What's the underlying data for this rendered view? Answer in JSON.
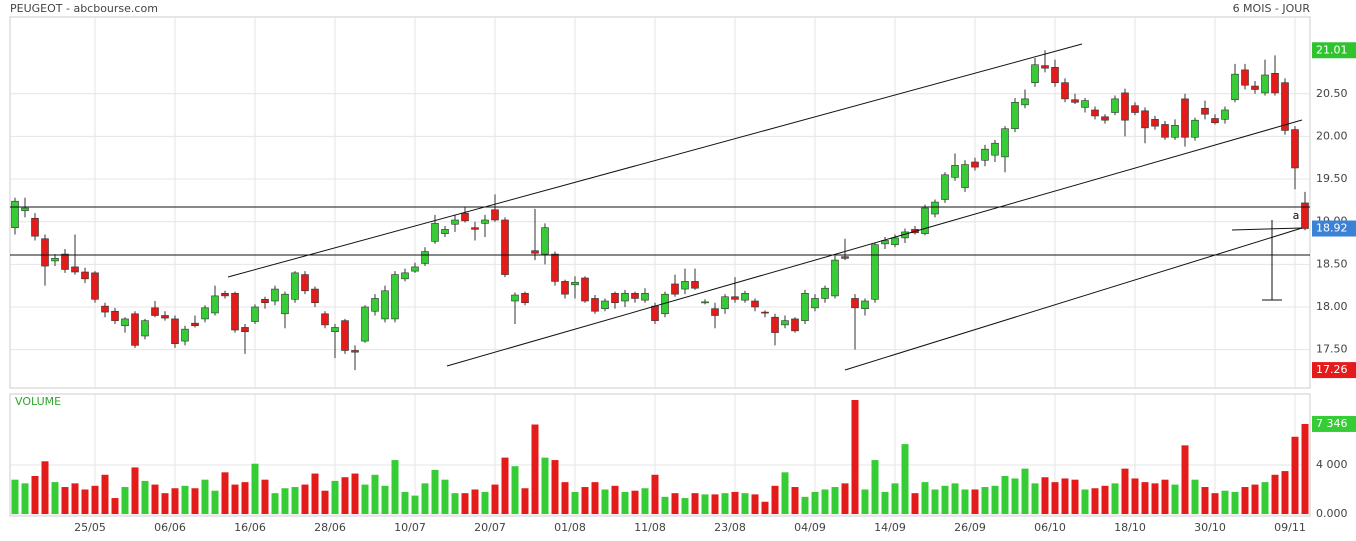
{
  "chart_data": {
    "type": "candlestick",
    "title": "PEUGEOT - abcbourse.com",
    "period": "6 MOIS - JOUR",
    "annotation": "a",
    "up_color": "#35cc35",
    "down_color": "#e31b1b",
    "ylim": [
      17.05,
      21.4
    ],
    "yticks": [
      {
        "value": 17.5,
        "label": "17.50"
      },
      {
        "value": 18,
        "label": "18.00"
      },
      {
        "value": 18.5,
        "label": "18.50"
      },
      {
        "value": 19,
        "label": "19.00"
      },
      {
        "value": 19.5,
        "label": "19.50"
      },
      {
        "value": 20,
        "label": "20.00"
      },
      {
        "value": 20.5,
        "label": "20.50"
      }
    ],
    "value_tags": [
      {
        "value": 21.01,
        "color": "#2fc42f"
      },
      {
        "value": 18.92,
        "color": "#3b82d6"
      },
      {
        "value": 17.26,
        "color": "#e31b1b"
      }
    ],
    "categories": [
      null,
      null,
      null,
      null,
      null,
      null,
      null,
      null,
      "25/05",
      null,
      null,
      null,
      null,
      null,
      null,
      null,
      "06/06",
      null,
      null,
      null,
      null,
      null,
      null,
      null,
      "16/06",
      null,
      null,
      null,
      null,
      null,
      null,
      null,
      "28/06",
      null,
      null,
      null,
      null,
      null,
      null,
      null,
      "10/07",
      null,
      null,
      null,
      null,
      null,
      null,
      null,
      "20/07",
      null,
      null,
      null,
      null,
      null,
      null,
      null,
      "01/08",
      null,
      null,
      null,
      null,
      null,
      null,
      null,
      "11/08",
      null,
      null,
      null,
      null,
      null,
      null,
      null,
      "23/08",
      null,
      null,
      null,
      null,
      null,
      null,
      null,
      "04/09",
      null,
      null,
      null,
      null,
      null,
      null,
      null,
      "14/09",
      null,
      null,
      null,
      null,
      null,
      null,
      null,
      "26/09",
      null,
      null,
      null,
      null,
      null,
      null,
      null,
      "06/10",
      null,
      null,
      null,
      null,
      null,
      null,
      null,
      "18/10",
      null,
      null,
      null,
      null,
      null,
      null,
      null,
      "30/10",
      null,
      null,
      null,
      null,
      null,
      null,
      null,
      "09/11",
      null
    ],
    "candles": [
      [
        18.93,
        19.28,
        18.85,
        19.24
      ],
      [
        19.13,
        19.28,
        19.05,
        19.16
      ],
      [
        19.04,
        19.1,
        18.78,
        18.83
      ],
      [
        18.8,
        18.85,
        18.25,
        18.48
      ],
      [
        18.54,
        18.62,
        18.48,
        18.57
      ],
      [
        18.62,
        18.68,
        18.4,
        18.44
      ],
      [
        18.47,
        18.85,
        18.38,
        18.41
      ],
      [
        18.41,
        18.46,
        18.28,
        18.33
      ],
      [
        18.4,
        18.42,
        18.05,
        18.09
      ],
      [
        18.01,
        18.05,
        17.88,
        17.94
      ],
      [
        17.95,
        17.99,
        17.8,
        17.84
      ],
      [
        17.78,
        17.88,
        17.7,
        17.86
      ],
      [
        17.92,
        17.95,
        17.52,
        17.55
      ],
      [
        17.66,
        17.86,
        17.62,
        17.84
      ],
      [
        17.99,
        18.07,
        17.88,
        17.9
      ],
      [
        17.9,
        17.95,
        17.84,
        17.87
      ],
      [
        17.86,
        17.9,
        17.52,
        17.57
      ],
      [
        17.6,
        17.78,
        17.55,
        17.74
      ],
      [
        17.81,
        17.9,
        17.76,
        17.78
      ],
      [
        17.86,
        18.02,
        17.82,
        17.99
      ],
      [
        17.93,
        18.25,
        17.9,
        18.13
      ],
      [
        18.16,
        18.19,
        18.1,
        18.13
      ],
      [
        18.16,
        18.18,
        17.7,
        17.73
      ],
      [
        17.76,
        17.8,
        17.45,
        17.71
      ],
      [
        17.83,
        18.03,
        17.8,
        18.0
      ],
      [
        18.09,
        18.12,
        17.98,
        18.05
      ],
      [
        18.07,
        18.25,
        18.02,
        18.21
      ],
      [
        17.92,
        18.18,
        17.75,
        18.15
      ],
      [
        18.09,
        18.42,
        18.05,
        18.4
      ],
      [
        18.38,
        18.42,
        18.15,
        18.19
      ],
      [
        18.21,
        18.24,
        18.0,
        18.05
      ],
      [
        17.92,
        17.95,
        17.75,
        17.79
      ],
      [
        17.71,
        17.8,
        17.4,
        17.76
      ],
      [
        17.84,
        17.86,
        17.45,
        17.49
      ],
      [
        17.49,
        17.55,
        17.26,
        17.47
      ],
      [
        17.6,
        18.02,
        17.58,
        18.0
      ],
      [
        17.95,
        18.15,
        17.9,
        18.1
      ],
      [
        17.86,
        18.25,
        17.82,
        18.19
      ],
      [
        17.86,
        18.42,
        17.82,
        18.38
      ],
      [
        18.33,
        18.45,
        18.3,
        18.4
      ],
      [
        18.42,
        18.52,
        18.4,
        18.47
      ],
      [
        18.51,
        18.7,
        18.48,
        18.65
      ],
      [
        18.77,
        19.08,
        18.74,
        18.98
      ],
      [
        18.86,
        18.95,
        18.82,
        18.91
      ],
      [
        18.97,
        19.08,
        18.88,
        19.02
      ],
      [
        19.1,
        19.17,
        18.99,
        19.01
      ],
      [
        18.93,
        19.0,
        18.78,
        18.91
      ],
      [
        18.98,
        19.08,
        18.82,
        19.02
      ],
      [
        19.14,
        19.32,
        19.0,
        19.02
      ],
      [
        19.02,
        19.05,
        18.35,
        18.38
      ],
      [
        18.07,
        18.17,
        17.8,
        18.14
      ],
      [
        18.16,
        18.18,
        18.02,
        18.05
      ],
      [
        18.66,
        19.15,
        18.55,
        18.63
      ],
      [
        18.62,
        18.98,
        18.5,
        18.93
      ],
      [
        18.62,
        18.65,
        18.25,
        18.3
      ],
      [
        18.3,
        18.32,
        18.1,
        18.15
      ],
      [
        18.26,
        18.36,
        18.1,
        18.29
      ],
      [
        18.34,
        18.36,
        18.05,
        18.07
      ],
      [
        18.1,
        18.14,
        17.92,
        17.95
      ],
      [
        17.98,
        18.1,
        17.95,
        18.07
      ],
      [
        18.16,
        18.18,
        17.98,
        18.05
      ],
      [
        18.07,
        18.2,
        18.0,
        18.16
      ],
      [
        18.16,
        18.18,
        18.05,
        18.1
      ],
      [
        18.08,
        18.22,
        18.05,
        18.16
      ],
      [
        18.01,
        18.05,
        17.8,
        17.84
      ],
      [
        17.92,
        18.18,
        17.88,
        18.15
      ],
      [
        18.27,
        18.38,
        18.12,
        18.15
      ],
      [
        18.21,
        18.45,
        18.15,
        18.3
      ],
      [
        18.3,
        18.45,
        18.2,
        18.22
      ],
      [
        18.05,
        18.09,
        18.03,
        18.06
      ],
      [
        17.98,
        18.05,
        17.75,
        17.9
      ],
      [
        17.98,
        18.15,
        17.92,
        18.12
      ],
      [
        18.12,
        18.35,
        18.05,
        18.09
      ],
      [
        18.08,
        18.19,
        18.05,
        18.16
      ],
      [
        18.07,
        18.1,
        17.95,
        18.0
      ],
      [
        17.94,
        17.96,
        17.88,
        17.93
      ],
      [
        17.88,
        17.92,
        17.55,
        17.7
      ],
      [
        17.79,
        17.9,
        17.75,
        17.84
      ],
      [
        17.86,
        17.88,
        17.7,
        17.72
      ],
      [
        17.84,
        18.2,
        17.8,
        18.16
      ],
      [
        17.99,
        18.15,
        17.95,
        18.1
      ],
      [
        18.1,
        18.25,
        18.05,
        18.22
      ],
      [
        18.13,
        18.6,
        18.1,
        18.55
      ],
      [
        18.59,
        18.8,
        18.55,
        18.57
      ],
      [
        18.1,
        18.15,
        17.5,
        17.99
      ],
      [
        17.98,
        18.1,
        17.9,
        18.07
      ],
      [
        18.09,
        18.75,
        18.05,
        18.73
      ],
      [
        18.74,
        18.82,
        18.68,
        18.78
      ],
      [
        18.73,
        18.85,
        18.7,
        18.81
      ],
      [
        18.81,
        18.92,
        18.75,
        18.88
      ],
      [
        18.91,
        18.95,
        18.85,
        18.87
      ],
      [
        18.86,
        19.2,
        18.84,
        19.16
      ],
      [
        19.09,
        19.26,
        19.05,
        19.23
      ],
      [
        19.26,
        19.58,
        19.22,
        19.55
      ],
      [
        19.52,
        19.8,
        19.48,
        19.66
      ],
      [
        19.4,
        19.72,
        19.35,
        19.67
      ],
      [
        19.7,
        19.75,
        19.6,
        19.64
      ],
      [
        19.72,
        19.9,
        19.65,
        19.85
      ],
      [
        19.78,
        19.96,
        19.7,
        19.92
      ],
      [
        19.76,
        20.12,
        19.58,
        20.09
      ],
      [
        20.09,
        20.45,
        20.05,
        20.4
      ],
      [
        20.37,
        20.55,
        20.33,
        20.44
      ],
      [
        20.63,
        20.92,
        20.58,
        20.84
      ],
      [
        20.83,
        21.01,
        20.75,
        20.8
      ],
      [
        20.81,
        20.9,
        20.58,
        20.63
      ],
      [
        20.63,
        20.68,
        20.4,
        20.44
      ],
      [
        20.43,
        20.5,
        20.38,
        20.4
      ],
      [
        20.34,
        20.45,
        20.28,
        20.42
      ],
      [
        20.31,
        20.35,
        20.2,
        20.24
      ],
      [
        20.23,
        20.26,
        20.15,
        20.19
      ],
      [
        20.28,
        20.48,
        20.25,
        20.44
      ],
      [
        20.51,
        20.56,
        20.0,
        20.19
      ],
      [
        20.36,
        20.4,
        20.25,
        20.28
      ],
      [
        20.3,
        20.34,
        19.92,
        20.1
      ],
      [
        20.2,
        20.24,
        20.08,
        20.12
      ],
      [
        20.14,
        20.18,
        19.96,
        19.99
      ],
      [
        19.99,
        20.2,
        19.96,
        20.13
      ],
      [
        20.44,
        20.5,
        19.88,
        19.99
      ],
      [
        19.99,
        20.22,
        19.95,
        20.19
      ],
      [
        20.33,
        20.42,
        20.2,
        20.26
      ],
      [
        20.21,
        20.26,
        20.14,
        20.16
      ],
      [
        20.2,
        20.35,
        20.15,
        20.31
      ],
      [
        20.43,
        20.85,
        20.4,
        20.73
      ],
      [
        20.78,
        20.85,
        20.55,
        20.6
      ],
      [
        20.59,
        20.65,
        20.5,
        20.55
      ],
      [
        20.51,
        20.9,
        20.48,
        20.72
      ],
      [
        20.74,
        20.95,
        20.48,
        20.51
      ],
      [
        20.63,
        20.68,
        20.02,
        20.07
      ],
      [
        20.08,
        20.12,
        19.38,
        19.63
      ],
      [
        19.22,
        19.35,
        18.9,
        18.92
      ]
    ],
    "volume": {
      "title": "VOLUME",
      "ylim": [
        0,
        9300
      ],
      "yticks": [
        {
          "value": 0,
          "label": "0.000"
        },
        {
          "value": 4000,
          "label": "4 000"
        }
      ],
      "tag": {
        "value": 7346,
        "label": "7 346"
      },
      "values": [
        2800,
        2500,
        3100,
        4300,
        2600,
        2200,
        2500,
        2000,
        2300,
        3200,
        1300,
        2200,
        3800,
        2700,
        2400,
        1700,
        2100,
        2300,
        2100,
        2800,
        1900,
        3400,
        2400,
        2600,
        4100,
        2800,
        1700,
        2100,
        2200,
        2400,
        3300,
        1900,
        2700,
        3000,
        3300,
        2400,
        3200,
        2300,
        4400,
        1800,
        1500,
        2500,
        3600,
        2800,
        1700,
        1700,
        2000,
        1800,
        2400,
        4600,
        3900,
        2100,
        7300,
        4600,
        4400,
        2600,
        1800,
        2200,
        2600,
        2000,
        2300,
        1800,
        1900,
        2100,
        3200,
        1400,
        1700,
        1300,
        1700,
        1600,
        1600,
        1700,
        1800,
        1700,
        1600,
        1000,
        2300,
        3400,
        2200,
        1400,
        1800,
        2000,
        2200,
        2500,
        9300,
        2000,
        4400,
        1800,
        2500,
        5700,
        1700,
        2600,
        2000,
        2300,
        2500,
        2000,
        2000,
        2200,
        2300,
        3100,
        2900,
        3700,
        2500,
        3000,
        2600,
        2900,
        2800,
        2000,
        2100,
        2300,
        2500,
        3700,
        2900,
        2600,
        2500,
        2800,
        2400,
        5600,
        2800,
        2200,
        1700,
        1900,
        1800,
        2200,
        2400,
        2600,
        3200,
        3500,
        6300,
        7346
      ]
    }
  }
}
